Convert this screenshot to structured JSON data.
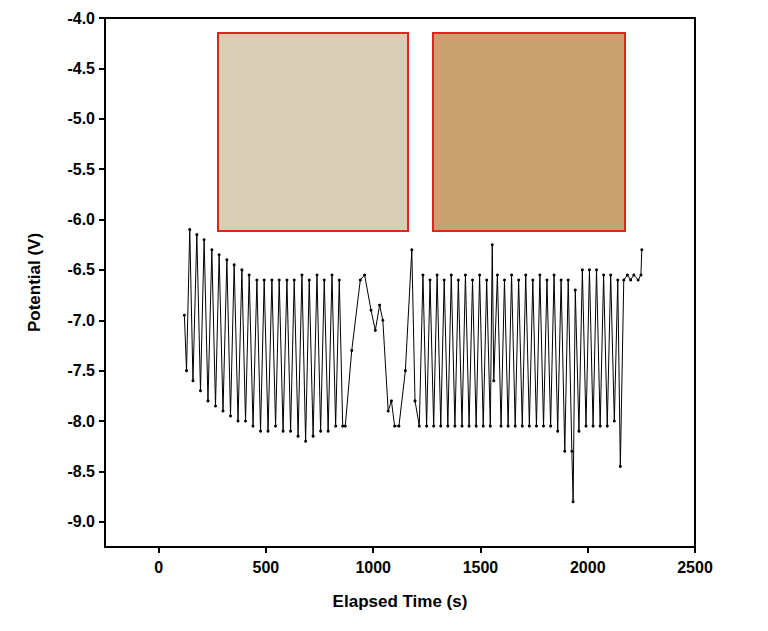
{
  "chart_data": {
    "type": "line",
    "x_label": "Elapsed Time (s)",
    "y_label": "Potential (V)",
    "xlim": [
      -250,
      2500
    ],
    "xticks": [
      0,
      500,
      1000,
      1500,
      2000,
      2500
    ],
    "ylim": [
      -9.25,
      -4.0
    ],
    "yticks": [
      {
        "value": -9.0,
        "label": "-9.0"
      },
      {
        "value": -8.5,
        "label": "-8.5"
      },
      {
        "value": -8.0,
        "label": "-8.0"
      },
      {
        "value": -7.5,
        "label": "-7.5"
      },
      {
        "value": -7.0,
        "label": "-7.0"
      },
      {
        "value": -6.5,
        "label": "-6.5"
      },
      {
        "value": -6.0,
        "label": "-6.0"
      },
      {
        "value": -5.5,
        "label": "-5.5"
      },
      {
        "value": -5.0,
        "label": "-5.0"
      },
      {
        "value": -4.5,
        "label": "-4.5"
      },
      {
        "value": -4.0,
        "label": "-4.0"
      }
    ],
    "grid": false,
    "color": "#000000",
    "marker": "circle",
    "line_style": "solid",
    "x": [
      120,
      130,
      145,
      160,
      178,
      195,
      212,
      230,
      248,
      265,
      282,
      300,
      318,
      335,
      352,
      370,
      388,
      405,
      422,
      440,
      458,
      475,
      492,
      510,
      528,
      545,
      562,
      580,
      598,
      615,
      632,
      650,
      668,
      685,
      702,
      720,
      738,
      755,
      772,
      790,
      808,
      825,
      842,
      858,
      870,
      900,
      940,
      960,
      990,
      1010,
      1030,
      1045,
      1070,
      1085,
      1100,
      1120,
      1150,
      1180,
      1195,
      1215,
      1232,
      1249,
      1265,
      1282,
      1298,
      1315,
      1331,
      1348,
      1364,
      1381,
      1397,
      1414,
      1430,
      1447,
      1463,
      1480,
      1496,
      1513,
      1529,
      1546,
      1555,
      1562,
      1579,
      1596,
      1612,
      1629,
      1645,
      1662,
      1678,
      1695,
      1711,
      1728,
      1744,
      1761,
      1777,
      1794,
      1810,
      1827,
      1843,
      1860,
      1876,
      1893,
      1909,
      1926,
      1932,
      1942,
      1959,
      1975,
      1992,
      2008,
      2025,
      2041,
      2058,
      2074,
      2091,
      2107,
      2124,
      2140,
      2152,
      2168,
      2185,
      2200,
      2215,
      2235,
      2248,
      2252
    ],
    "values": [
      -6.95,
      -7.5,
      -6.1,
      -7.6,
      -6.15,
      -7.7,
      -6.2,
      -7.8,
      -6.3,
      -7.85,
      -6.35,
      -7.9,
      -6.4,
      -7.95,
      -6.45,
      -8.0,
      -6.5,
      -8.0,
      -6.55,
      -8.05,
      -6.6,
      -8.1,
      -6.6,
      -8.1,
      -6.6,
      -8.05,
      -6.6,
      -8.1,
      -6.6,
      -8.1,
      -6.6,
      -8.15,
      -6.55,
      -8.2,
      -6.6,
      -8.15,
      -6.55,
      -8.1,
      -6.6,
      -8.1,
      -6.55,
      -8.05,
      -6.6,
      -8.05,
      -8.05,
      -7.3,
      -6.6,
      -6.55,
      -6.9,
      -7.1,
      -6.85,
      -7.0,
      -7.9,
      -7.8,
      -8.05,
      -8.05,
      -7.5,
      -6.3,
      -7.8,
      -8.05,
      -6.55,
      -8.05,
      -6.6,
      -8.05,
      -6.55,
      -8.05,
      -6.6,
      -8.05,
      -6.55,
      -8.05,
      -6.6,
      -8.05,
      -6.55,
      -8.05,
      -6.6,
      -8.05,
      -6.55,
      -8.05,
      -6.6,
      -8.05,
      -6.25,
      -7.6,
      -6.55,
      -8.05,
      -6.6,
      -8.05,
      -6.55,
      -8.05,
      -6.6,
      -8.05,
      -6.55,
      -8.05,
      -6.6,
      -8.05,
      -6.55,
      -8.05,
      -6.6,
      -8.05,
      -6.55,
      -8.1,
      -6.6,
      -8.3,
      -6.6,
      -8.3,
      -8.8,
      -6.7,
      -8.1,
      -6.5,
      -8.05,
      -6.5,
      -8.05,
      -6.5,
      -8.05,
      -6.55,
      -8.05,
      -6.55,
      -8.0,
      -6.6,
      -8.45,
      -6.6,
      -6.55,
      -6.6,
      -6.55,
      -6.6,
      -6.55,
      -6.3
    ]
  }
}
